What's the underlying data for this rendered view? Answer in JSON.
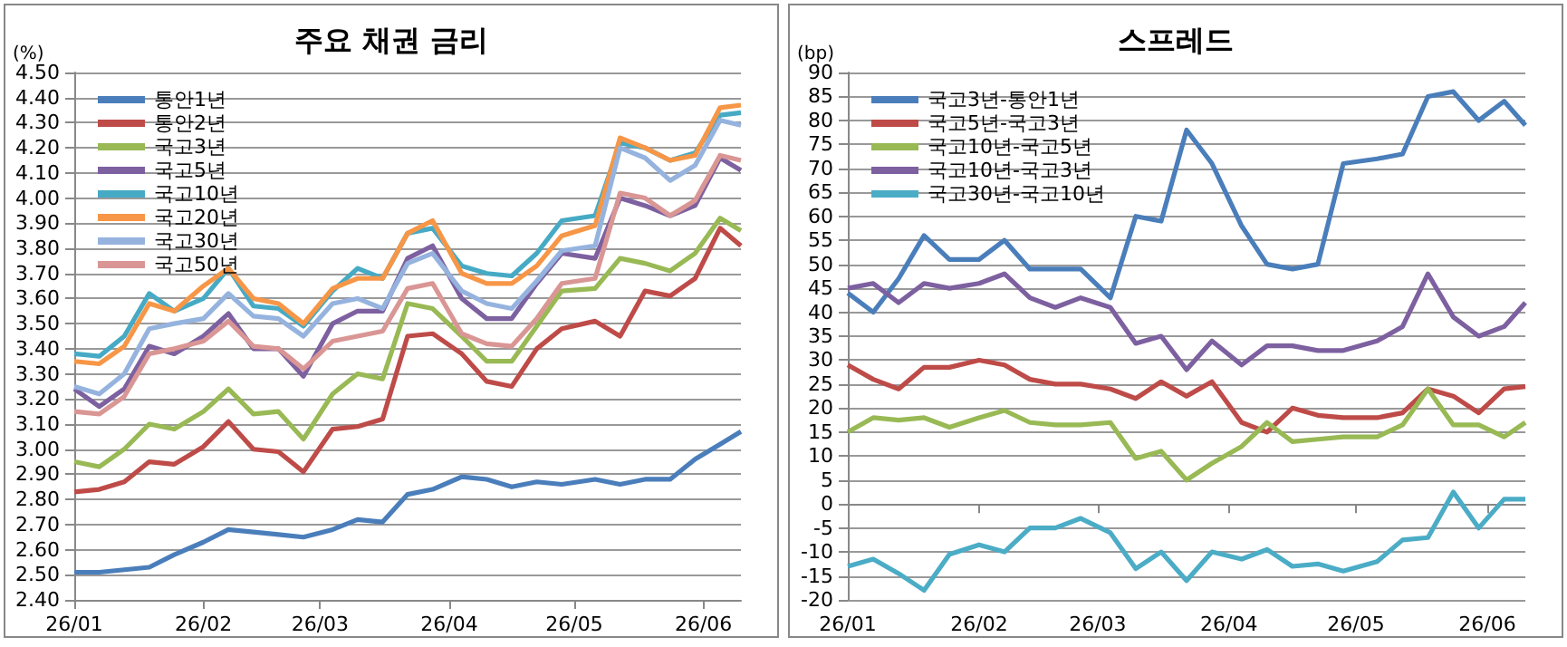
{
  "chart_data": [
    {
      "type": "line",
      "title": "주요 채권 금리",
      "ylabel": "(%)",
      "grid": "y",
      "legend": "top left",
      "marker": "none",
      "line_style": "solid",
      "x": [
        "--01-01",
        "--01-07",
        "--01-13",
        "--01-19",
        "--01-25",
        "--02-01",
        "--02-07",
        "--02-13",
        "--02-19",
        "--02-25",
        "--03-04",
        "--03-10",
        "--03-16",
        "--03-22",
        "--03-28",
        "--04-04",
        "--04-10",
        "--04-16",
        "--04-22",
        "--04-28",
        "--05-06",
        "--05-12",
        "--05-18",
        "--05-24",
        "--05-30",
        "--06-05",
        "--06-10"
      ],
      "xlim": [
        "--01-01",
        "--06-10"
      ],
      "xticks": [
        {
          "value": "--01-01",
          "label": "26/01"
        },
        {
          "value": "--02-01",
          "label": "26/02"
        },
        {
          "value": "--03-01",
          "label": "26/03"
        },
        {
          "value": "--04-01",
          "label": "26/04"
        },
        {
          "value": "--05-01",
          "label": "26/05"
        },
        {
          "value": "--06-01",
          "label": "26/06"
        }
      ],
      "ylim": [
        2.4,
        4.5
      ],
      "yticks": [
        {
          "value": 2.4,
          "label": "2.40"
        },
        {
          "value": 2.5,
          "label": "2.50"
        },
        {
          "value": 2.6,
          "label": "2.60"
        },
        {
          "value": 2.7,
          "label": "2.70"
        },
        {
          "value": 2.8,
          "label": "2.80"
        },
        {
          "value": 2.9,
          "label": "2.90"
        },
        {
          "value": 3.0,
          "label": "3.00"
        },
        {
          "value": 3.1,
          "label": "3.10"
        },
        {
          "value": 3.2,
          "label": "3.20"
        },
        {
          "value": 3.3,
          "label": "3.30"
        },
        {
          "value": 3.4,
          "label": "3.40"
        },
        {
          "value": 3.5,
          "label": "3.50"
        },
        {
          "value": 3.6,
          "label": "3.60"
        },
        {
          "value": 3.7,
          "label": "3.70"
        },
        {
          "value": 3.8,
          "label": "3.80"
        },
        {
          "value": 3.9,
          "label": "3.90"
        },
        {
          "value": 4.0,
          "label": "4.00"
        },
        {
          "value": 4.1,
          "label": "4.10"
        },
        {
          "value": 4.2,
          "label": "4.20"
        },
        {
          "value": 4.3,
          "label": "4.30"
        },
        {
          "value": 4.4,
          "label": "4.40"
        },
        {
          "value": 4.5,
          "label": "4.50"
        }
      ],
      "series": [
        {
          "name": "통안1년",
          "color": "#4a7ebb",
          "values": [
            2.51,
            2.51,
            2.52,
            2.53,
            2.58,
            2.63,
            2.68,
            2.67,
            2.66,
            2.65,
            2.68,
            2.72,
            2.71,
            2.82,
            2.84,
            2.89,
            2.88,
            2.85,
            2.87,
            2.86,
            2.88,
            2.86,
            2.88,
            2.88,
            2.96,
            3.02,
            3.07
          ]
        },
        {
          "name": "통안2년",
          "color": "#be4b48",
          "values": [
            2.83,
            2.84,
            2.87,
            2.95,
            2.94,
            3.01,
            3.11,
            3.0,
            2.99,
            2.91,
            3.08,
            3.09,
            3.12,
            3.45,
            3.46,
            3.38,
            3.27,
            3.25,
            3.4,
            3.48,
            3.51,
            3.45,
            3.63,
            3.61,
            3.68,
            3.88,
            3.81
          ]
        },
        {
          "name": "국고3년",
          "color": "#98b954",
          "values": [
            2.95,
            2.93,
            3.0,
            3.1,
            3.08,
            3.15,
            3.24,
            3.14,
            3.15,
            3.04,
            3.22,
            3.3,
            3.28,
            3.58,
            3.56,
            3.45,
            3.35,
            3.35,
            3.49,
            3.63,
            3.64,
            3.76,
            3.74,
            3.71,
            3.78,
            3.92,
            3.87
          ]
        },
        {
          "name": "국고5년",
          "color": "#7d60a0",
          "values": [
            3.24,
            3.17,
            3.24,
            3.41,
            3.38,
            3.45,
            3.54,
            3.4,
            3.4,
            3.29,
            3.5,
            3.55,
            3.55,
            3.76,
            3.81,
            3.6,
            3.52,
            3.52,
            3.66,
            3.78,
            3.76,
            4.0,
            3.97,
            3.93,
            3.97,
            4.16,
            4.11
          ]
        },
        {
          "name": "국고10년",
          "color": "#46aac5",
          "values": [
            3.38,
            3.37,
            3.45,
            3.62,
            3.55,
            3.6,
            3.72,
            3.57,
            3.56,
            3.49,
            3.63,
            3.72,
            3.68,
            3.86,
            3.88,
            3.73,
            3.7,
            3.69,
            3.78,
            3.91,
            3.93,
            4.22,
            4.2,
            4.15,
            4.18,
            4.33,
            4.34
          ]
        },
        {
          "name": "국고20년",
          "color": "#f79646",
          "values": [
            3.35,
            3.34,
            3.41,
            3.58,
            3.55,
            3.65,
            3.72,
            3.6,
            3.58,
            3.5,
            3.64,
            3.68,
            3.68,
            3.86,
            3.91,
            3.7,
            3.66,
            3.66,
            3.73,
            3.85,
            3.89,
            4.24,
            4.2,
            4.15,
            4.17,
            4.36,
            4.37
          ]
        },
        {
          "name": "국고30년",
          "color": "#95b3de",
          "values": [
            3.25,
            3.22,
            3.3,
            3.48,
            3.5,
            3.52,
            3.62,
            3.53,
            3.52,
            3.45,
            3.58,
            3.6,
            3.56,
            3.74,
            3.78,
            3.63,
            3.58,
            3.56,
            3.67,
            3.79,
            3.81,
            4.2,
            4.16,
            4.07,
            4.13,
            4.31,
            4.29
          ]
        },
        {
          "name": "국고50년",
          "color": "#d99694",
          "values": [
            3.15,
            3.14,
            3.21,
            3.38,
            3.4,
            3.43,
            3.51,
            3.41,
            3.4,
            3.32,
            3.43,
            3.45,
            3.47,
            3.64,
            3.66,
            3.46,
            3.42,
            3.41,
            3.52,
            3.66,
            3.68,
            4.02,
            4.0,
            3.93,
            3.99,
            4.17,
            4.15
          ]
        }
      ]
    },
    {
      "type": "line",
      "title": "스프레드",
      "ylabel": "(bp)",
      "grid": "y",
      "legend": "top left",
      "marker": "none",
      "line_style": "solid",
      "x": [
        "--01-01",
        "--01-07",
        "--01-13",
        "--01-19",
        "--01-25",
        "--02-01",
        "--02-07",
        "--02-13",
        "--02-19",
        "--02-25",
        "--03-04",
        "--03-10",
        "--03-16",
        "--03-22",
        "--03-28",
        "--04-04",
        "--04-10",
        "--04-16",
        "--04-22",
        "--04-28",
        "--05-06",
        "--05-12",
        "--05-18",
        "--05-24",
        "--05-30",
        "--06-05",
        "--06-10"
      ],
      "xlim": [
        "--01-01",
        "--06-10"
      ],
      "xticks": [
        {
          "value": "--01-01",
          "label": "26/01"
        },
        {
          "value": "--02-01",
          "label": "26/02"
        },
        {
          "value": "--03-01",
          "label": "26/03"
        },
        {
          "value": "--04-01",
          "label": "26/04"
        },
        {
          "value": "--05-01",
          "label": "26/05"
        },
        {
          "value": "--06-01",
          "label": "26/06"
        }
      ],
      "ylim": [
        -20,
        90
      ],
      "yticks": [
        -20,
        -15,
        -10,
        -5,
        0,
        5,
        10,
        15,
        20,
        25,
        30,
        35,
        40,
        45,
        50,
        55,
        60,
        65,
        70,
        75,
        80,
        85,
        90
      ],
      "series": [
        {
          "name": "국고3년-통안1년",
          "color": "#4a7ebb",
          "values": [
            44,
            40,
            47,
            56,
            51,
            51,
            55,
            49,
            49,
            49,
            43,
            60,
            59,
            78,
            71,
            58,
            50,
            49,
            50,
            71,
            72,
            73,
            85,
            86,
            80,
            84,
            79
          ]
        },
        {
          "name": "국고5년-국고3년",
          "color": "#be4b48",
          "values": [
            29,
            26,
            24,
            28.5,
            28.5,
            30,
            29,
            26,
            25,
            25,
            24,
            22,
            25.5,
            22.5,
            25.5,
            17,
            15,
            20,
            18.5,
            18,
            18,
            19,
            24,
            22.5,
            19,
            24,
            24.5
          ]
        },
        {
          "name": "국고10년-국고5년",
          "color": "#98b954",
          "values": [
            15,
            18,
            17.5,
            18,
            16,
            18,
            19.5,
            17,
            16.5,
            16.5,
            17,
            9.5,
            11,
            5,
            8.5,
            12,
            17,
            13,
            13.5,
            14,
            14,
            16.5,
            24,
            16.5,
            16.5,
            14,
            17
          ]
        },
        {
          "name": "국고10년-국고3년",
          "color": "#7d60a0",
          "values": [
            45,
            46,
            42,
            46,
            45,
            46,
            48,
            43,
            41,
            43,
            41,
            33.5,
            35,
            28,
            34,
            29,
            33,
            33,
            32,
            32,
            34,
            37,
            48,
            39,
            35,
            37,
            42
          ]
        },
        {
          "name": "국고30년-국고10년",
          "color": "#4bacc6",
          "values": [
            -13,
            -11.5,
            -14.5,
            -18,
            -10.5,
            -8.5,
            -10,
            -5,
            -5,
            -3,
            -6,
            -13.5,
            -10,
            -16,
            -10,
            -11.5,
            -9.5,
            -13,
            -12.5,
            -14,
            -12,
            -7.5,
            -7,
            2.5,
            -5,
            1,
            1
          ]
        }
      ]
    }
  ]
}
